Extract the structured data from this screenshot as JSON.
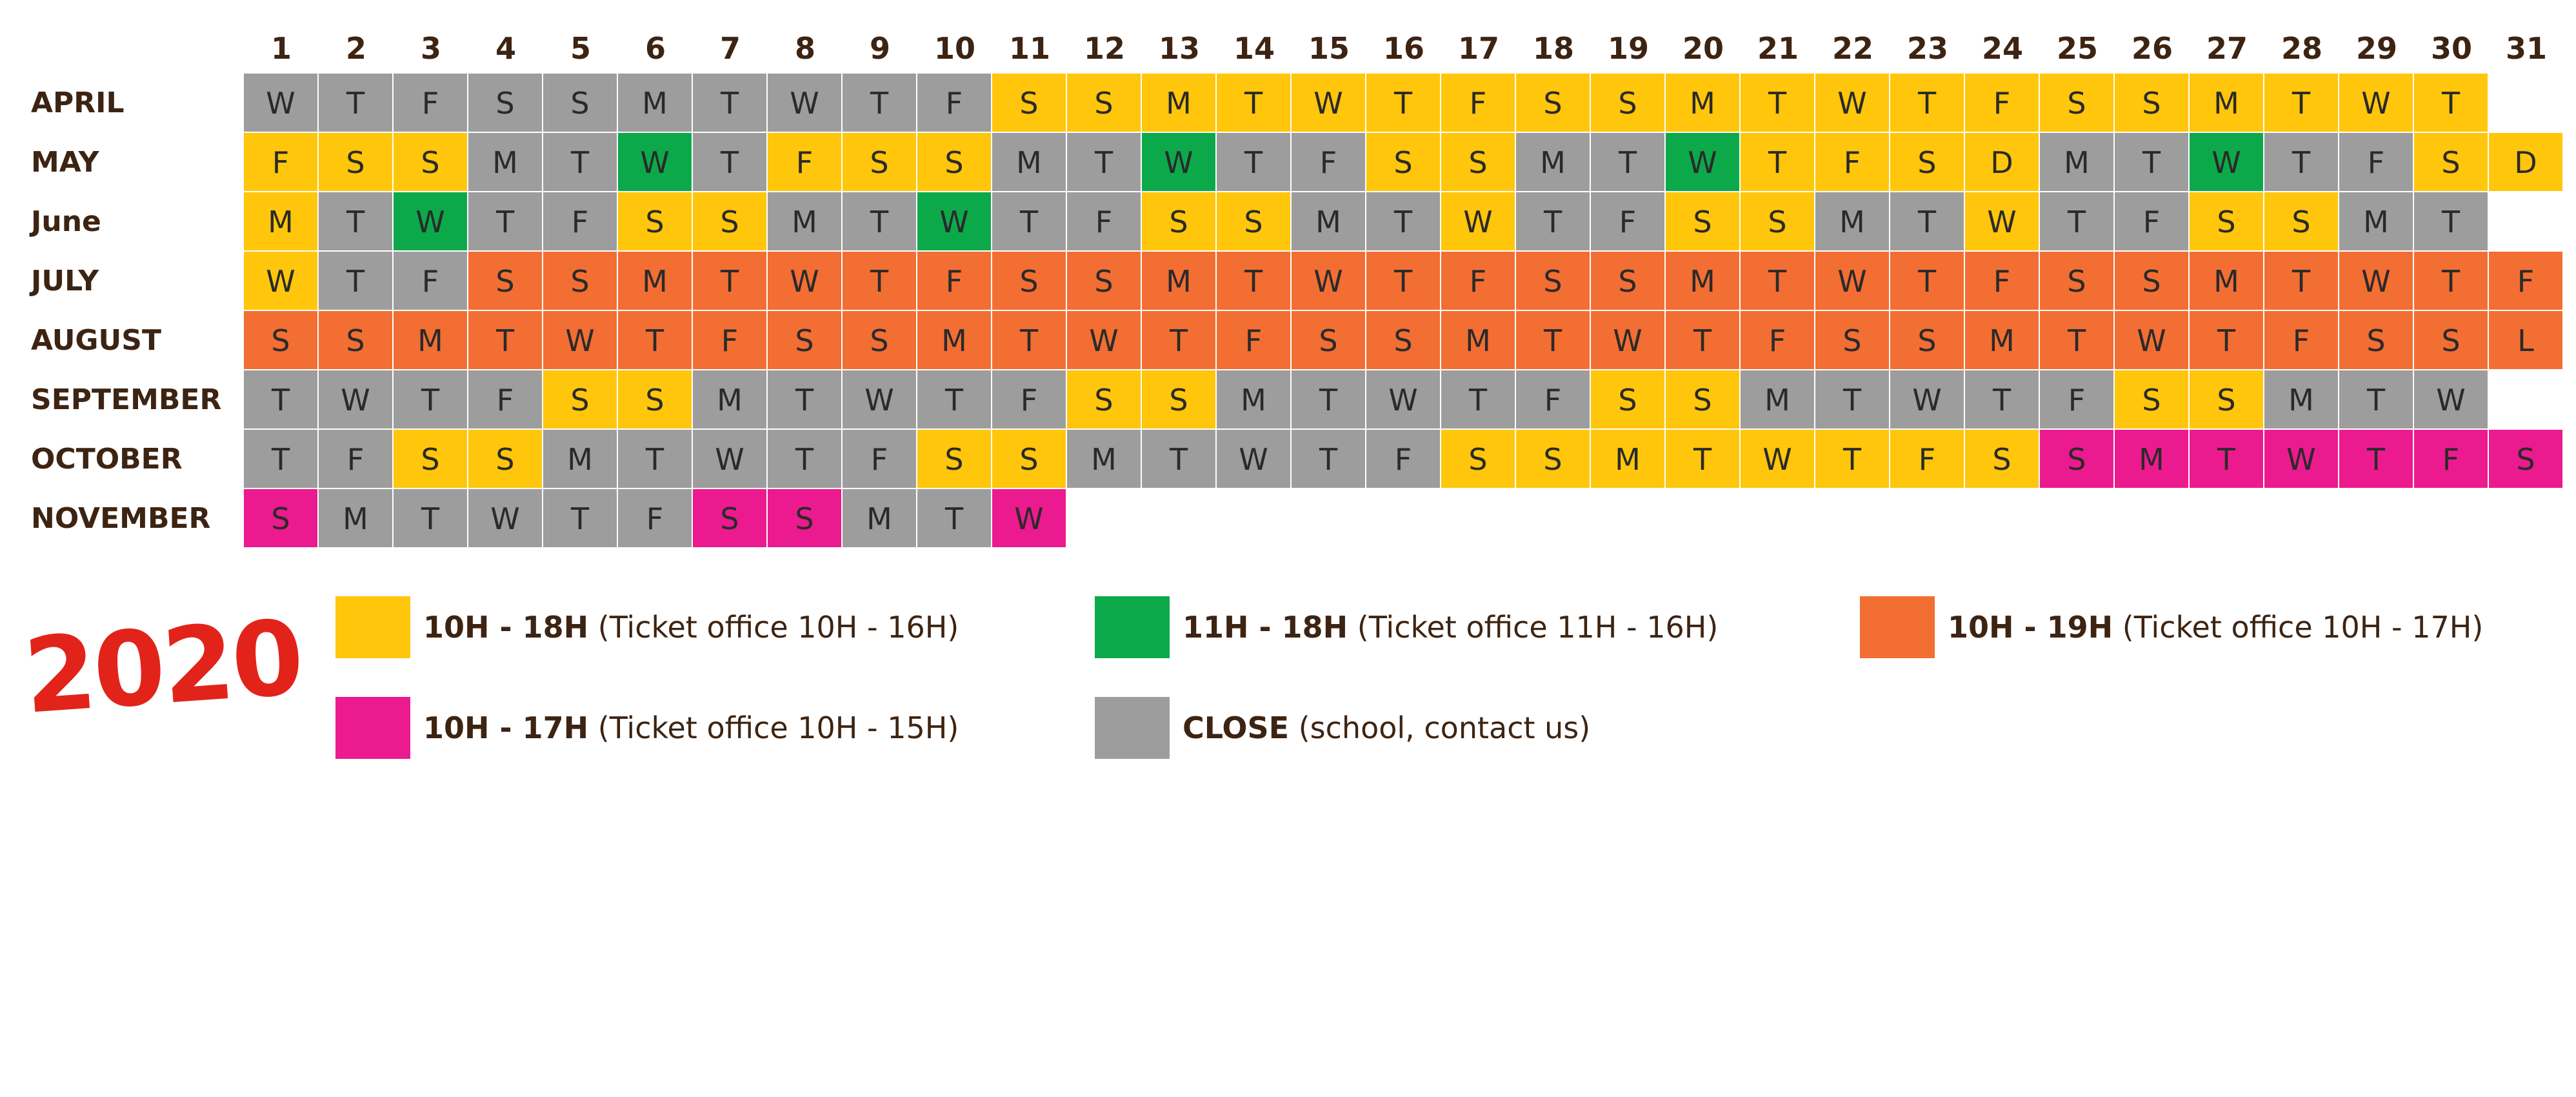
{
  "year": "2020",
  "colors": {
    "yellow": "#ffc60b",
    "green": "#0ca94a",
    "orange": "#f26e33",
    "pink": "#ec1a8f",
    "gray": "#9d9d9d"
  },
  "days": [
    "1",
    "2",
    "3",
    "4",
    "5",
    "6",
    "7",
    "8",
    "9",
    "10",
    "11",
    "12",
    "13",
    "14",
    "15",
    "16",
    "17",
    "18",
    "19",
    "20",
    "21",
    "22",
    "23",
    "24",
    "25",
    "26",
    "27",
    "28",
    "29",
    "30",
    "31"
  ],
  "months": [
    {
      "name": "APRIL",
      "days": [
        {
          "l": "W",
          "c": "gray"
        },
        {
          "l": "T",
          "c": "gray"
        },
        {
          "l": "F",
          "c": "gray"
        },
        {
          "l": "S",
          "c": "gray"
        },
        {
          "l": "S",
          "c": "gray"
        },
        {
          "l": "M",
          "c": "gray"
        },
        {
          "l": "T",
          "c": "gray"
        },
        {
          "l": "W",
          "c": "gray"
        },
        {
          "l": "T",
          "c": "gray"
        },
        {
          "l": "F",
          "c": "gray"
        },
        {
          "l": "S",
          "c": "yellow"
        },
        {
          "l": "S",
          "c": "yellow"
        },
        {
          "l": "M",
          "c": "yellow"
        },
        {
          "l": "T",
          "c": "yellow"
        },
        {
          "l": "W",
          "c": "yellow"
        },
        {
          "l": "T",
          "c": "yellow"
        },
        {
          "l": "F",
          "c": "yellow"
        },
        {
          "l": "S",
          "c": "yellow"
        },
        {
          "l": "S",
          "c": "yellow"
        },
        {
          "l": "M",
          "c": "yellow"
        },
        {
          "l": "T",
          "c": "yellow"
        },
        {
          "l": "W",
          "c": "yellow"
        },
        {
          "l": "T",
          "c": "yellow"
        },
        {
          "l": "F",
          "c": "yellow"
        },
        {
          "l": "S",
          "c": "yellow"
        },
        {
          "l": "S",
          "c": "yellow"
        },
        {
          "l": "M",
          "c": "yellow"
        },
        {
          "l": "T",
          "c": "yellow"
        },
        {
          "l": "W",
          "c": "yellow"
        },
        {
          "l": "T",
          "c": "yellow"
        }
      ]
    },
    {
      "name": "MAY",
      "days": [
        {
          "l": "F",
          "c": "yellow"
        },
        {
          "l": "S",
          "c": "yellow"
        },
        {
          "l": "S",
          "c": "yellow"
        },
        {
          "l": "M",
          "c": "gray"
        },
        {
          "l": "T",
          "c": "gray"
        },
        {
          "l": "W",
          "c": "green"
        },
        {
          "l": "T",
          "c": "gray"
        },
        {
          "l": "F",
          "c": "yellow"
        },
        {
          "l": "S",
          "c": "yellow"
        },
        {
          "l": "S",
          "c": "yellow"
        },
        {
          "l": "M",
          "c": "gray"
        },
        {
          "l": "T",
          "c": "gray"
        },
        {
          "l": "W",
          "c": "green"
        },
        {
          "l": "T",
          "c": "gray"
        },
        {
          "l": "F",
          "c": "gray"
        },
        {
          "l": "S",
          "c": "yellow"
        },
        {
          "l": "S",
          "c": "yellow"
        },
        {
          "l": "M",
          "c": "gray"
        },
        {
          "l": "T",
          "c": "gray"
        },
        {
          "l": "W",
          "c": "green"
        },
        {
          "l": "T",
          "c": "yellow"
        },
        {
          "l": "F",
          "c": "yellow"
        },
        {
          "l": "S",
          "c": "yellow"
        },
        {
          "l": "D",
          "c": "yellow"
        },
        {
          "l": "M",
          "c": "gray"
        },
        {
          "l": "T",
          "c": "gray"
        },
        {
          "l": "W",
          "c": "green"
        },
        {
          "l": "T",
          "c": "gray"
        },
        {
          "l": "F",
          "c": "gray"
        },
        {
          "l": "S",
          "c": "yellow"
        },
        {
          "l": "D",
          "c": "yellow"
        }
      ]
    },
    {
      "name": "June",
      "days": [
        {
          "l": "M",
          "c": "yellow"
        },
        {
          "l": "T",
          "c": "gray"
        },
        {
          "l": "W",
          "c": "green"
        },
        {
          "l": "T",
          "c": "gray"
        },
        {
          "l": "F",
          "c": "gray"
        },
        {
          "l": "S",
          "c": "yellow"
        },
        {
          "l": "S",
          "c": "yellow"
        },
        {
          "l": "M",
          "c": "gray"
        },
        {
          "l": "T",
          "c": "gray"
        },
        {
          "l": "W",
          "c": "green"
        },
        {
          "l": "T",
          "c": "gray"
        },
        {
          "l": "F",
          "c": "gray"
        },
        {
          "l": "S",
          "c": "yellow"
        },
        {
          "l": "S",
          "c": "yellow"
        },
        {
          "l": "M",
          "c": "gray"
        },
        {
          "l": "T",
          "c": "gray"
        },
        {
          "l": "W",
          "c": "yellow"
        },
        {
          "l": "T",
          "c": "gray"
        },
        {
          "l": "F",
          "c": "gray"
        },
        {
          "l": "S",
          "c": "yellow"
        },
        {
          "l": "S",
          "c": "yellow"
        },
        {
          "l": "M",
          "c": "gray"
        },
        {
          "l": "T",
          "c": "gray"
        },
        {
          "l": "W",
          "c": "yellow"
        },
        {
          "l": "T",
          "c": "gray"
        },
        {
          "l": "F",
          "c": "gray"
        },
        {
          "l": "S",
          "c": "yellow"
        },
        {
          "l": "S",
          "c": "yellow"
        },
        {
          "l": "M",
          "c": "gray"
        },
        {
          "l": "T",
          "c": "gray"
        }
      ]
    },
    {
      "name": "JULY",
      "days": [
        {
          "l": "W",
          "c": "yellow"
        },
        {
          "l": "T",
          "c": "gray"
        },
        {
          "l": "F",
          "c": "gray"
        },
        {
          "l": "S",
          "c": "orange"
        },
        {
          "l": "S",
          "c": "orange"
        },
        {
          "l": "M",
          "c": "orange"
        },
        {
          "l": "T",
          "c": "orange"
        },
        {
          "l": "W",
          "c": "orange"
        },
        {
          "l": "T",
          "c": "orange"
        },
        {
          "l": "F",
          "c": "orange"
        },
        {
          "l": "S",
          "c": "orange"
        },
        {
          "l": "S",
          "c": "orange"
        },
        {
          "l": "M",
          "c": "orange"
        },
        {
          "l": "T",
          "c": "orange"
        },
        {
          "l": "W",
          "c": "orange"
        },
        {
          "l": "T",
          "c": "orange"
        },
        {
          "l": "F",
          "c": "orange"
        },
        {
          "l": "S",
          "c": "orange"
        },
        {
          "l": "S",
          "c": "orange"
        },
        {
          "l": "M",
          "c": "orange"
        },
        {
          "l": "T",
          "c": "orange"
        },
        {
          "l": "W",
          "c": "orange"
        },
        {
          "l": "T",
          "c": "orange"
        },
        {
          "l": "F",
          "c": "orange"
        },
        {
          "l": "S",
          "c": "orange"
        },
        {
          "l": "S",
          "c": "orange"
        },
        {
          "l": "M",
          "c": "orange"
        },
        {
          "l": "T",
          "c": "orange"
        },
        {
          "l": "W",
          "c": "orange"
        },
        {
          "l": "T",
          "c": "orange"
        },
        {
          "l": "F",
          "c": "orange"
        }
      ]
    },
    {
      "name": "AUGUST",
      "days": [
        {
          "l": "S",
          "c": "orange"
        },
        {
          "l": "S",
          "c": "orange"
        },
        {
          "l": "M",
          "c": "orange"
        },
        {
          "l": "T",
          "c": "orange"
        },
        {
          "l": "W",
          "c": "orange"
        },
        {
          "l": "T",
          "c": "orange"
        },
        {
          "l": "F",
          "c": "orange"
        },
        {
          "l": "S",
          "c": "orange"
        },
        {
          "l": "S",
          "c": "orange"
        },
        {
          "l": "M",
          "c": "orange"
        },
        {
          "l": "T",
          "c": "orange"
        },
        {
          "l": "W",
          "c": "orange"
        },
        {
          "l": "T",
          "c": "orange"
        },
        {
          "l": "F",
          "c": "orange"
        },
        {
          "l": "S",
          "c": "orange"
        },
        {
          "l": "S",
          "c": "orange"
        },
        {
          "l": "M",
          "c": "orange"
        },
        {
          "l": "T",
          "c": "orange"
        },
        {
          "l": "W",
          "c": "orange"
        },
        {
          "l": "T",
          "c": "orange"
        },
        {
          "l": "F",
          "c": "orange"
        },
        {
          "l": "S",
          "c": "orange"
        },
        {
          "l": "S",
          "c": "orange"
        },
        {
          "l": "M",
          "c": "orange"
        },
        {
          "l": "T",
          "c": "orange"
        },
        {
          "l": "W",
          "c": "orange"
        },
        {
          "l": "T",
          "c": "orange"
        },
        {
          "l": "F",
          "c": "orange"
        },
        {
          "l": "S",
          "c": "orange"
        },
        {
          "l": "S",
          "c": "orange"
        },
        {
          "l": "L",
          "c": "orange"
        }
      ]
    },
    {
      "name": "SEPTEMBER",
      "days": [
        {
          "l": "T",
          "c": "gray"
        },
        {
          "l": "W",
          "c": "gray"
        },
        {
          "l": "T",
          "c": "gray"
        },
        {
          "l": "F",
          "c": "gray"
        },
        {
          "l": "S",
          "c": "yellow"
        },
        {
          "l": "S",
          "c": "yellow"
        },
        {
          "l": "M",
          "c": "gray"
        },
        {
          "l": "T",
          "c": "gray"
        },
        {
          "l": "W",
          "c": "gray"
        },
        {
          "l": "T",
          "c": "gray"
        },
        {
          "l": "F",
          "c": "gray"
        },
        {
          "l": "S",
          "c": "yellow"
        },
        {
          "l": "S",
          "c": "yellow"
        },
        {
          "l": "M",
          "c": "gray"
        },
        {
          "l": "T",
          "c": "gray"
        },
        {
          "l": "W",
          "c": "gray"
        },
        {
          "l": "T",
          "c": "gray"
        },
        {
          "l": "F",
          "c": "gray"
        },
        {
          "l": "S",
          "c": "yellow"
        },
        {
          "l": "S",
          "c": "yellow"
        },
        {
          "l": "M",
          "c": "gray"
        },
        {
          "l": "T",
          "c": "gray"
        },
        {
          "l": "W",
          "c": "gray"
        },
        {
          "l": "T",
          "c": "gray"
        },
        {
          "l": "F",
          "c": "gray"
        },
        {
          "l": "S",
          "c": "yellow"
        },
        {
          "l": "S",
          "c": "yellow"
        },
        {
          "l": "M",
          "c": "gray"
        },
        {
          "l": "T",
          "c": "gray"
        },
        {
          "l": "W",
          "c": "gray"
        }
      ]
    },
    {
      "name": "OCTOBER",
      "days": [
        {
          "l": "T",
          "c": "gray"
        },
        {
          "l": "F",
          "c": "gray"
        },
        {
          "l": "S",
          "c": "yellow"
        },
        {
          "l": "S",
          "c": "yellow"
        },
        {
          "l": "M",
          "c": "gray"
        },
        {
          "l": "T",
          "c": "gray"
        },
        {
          "l": "W",
          "c": "gray"
        },
        {
          "l": "T",
          "c": "gray"
        },
        {
          "l": "F",
          "c": "gray"
        },
        {
          "l": "S",
          "c": "yellow"
        },
        {
          "l": "S",
          "c": "yellow"
        },
        {
          "l": "M",
          "c": "gray"
        },
        {
          "l": "T",
          "c": "gray"
        },
        {
          "l": "W",
          "c": "gray"
        },
        {
          "l": "T",
          "c": "gray"
        },
        {
          "l": "F",
          "c": "gray"
        },
        {
          "l": "S",
          "c": "yellow"
        },
        {
          "l": "S",
          "c": "yellow"
        },
        {
          "l": "M",
          "c": "yellow"
        },
        {
          "l": "T",
          "c": "yellow"
        },
        {
          "l": "W",
          "c": "yellow"
        },
        {
          "l": "T",
          "c": "yellow"
        },
        {
          "l": "F",
          "c": "yellow"
        },
        {
          "l": "S",
          "c": "yellow"
        },
        {
          "l": "S",
          "c": "pink"
        },
        {
          "l": "M",
          "c": "pink"
        },
        {
          "l": "T",
          "c": "pink"
        },
        {
          "l": "W",
          "c": "pink"
        },
        {
          "l": "T",
          "c": "pink"
        },
        {
          "l": "F",
          "c": "pink"
        },
        {
          "l": "S",
          "c": "pink"
        }
      ]
    },
    {
      "name": "NOVEMBER",
      "days": [
        {
          "l": "S",
          "c": "pink"
        },
        {
          "l": "M",
          "c": "gray"
        },
        {
          "l": "T",
          "c": "gray"
        },
        {
          "l": "W",
          "c": "gray"
        },
        {
          "l": "T",
          "c": "gray"
        },
        {
          "l": "F",
          "c": "gray"
        },
        {
          "l": "S",
          "c": "pink"
        },
        {
          "l": "S",
          "c": "pink"
        },
        {
          "l": "M",
          "c": "gray"
        },
        {
          "l": "T",
          "c": "gray"
        },
        {
          "l": "W",
          "c": "pink"
        }
      ]
    }
  ],
  "legend": [
    {
      "key": "yellow",
      "bold": "10H - 18H",
      "text": " (Ticket office 10H - 16H)"
    },
    {
      "key": "green",
      "bold": "11H - 18H",
      "text": " (Ticket office 11H - 16H)"
    },
    {
      "key": "orange",
      "bold": "10H - 19H",
      "text": " (Ticket office 10H - 17H)"
    },
    {
      "key": "pink",
      "bold": "10H - 17H",
      "text": " (Ticket office 10H - 15H)"
    },
    {
      "key": "gray",
      "bold": "CLOSE",
      "text": " (school, contact us)"
    }
  ]
}
